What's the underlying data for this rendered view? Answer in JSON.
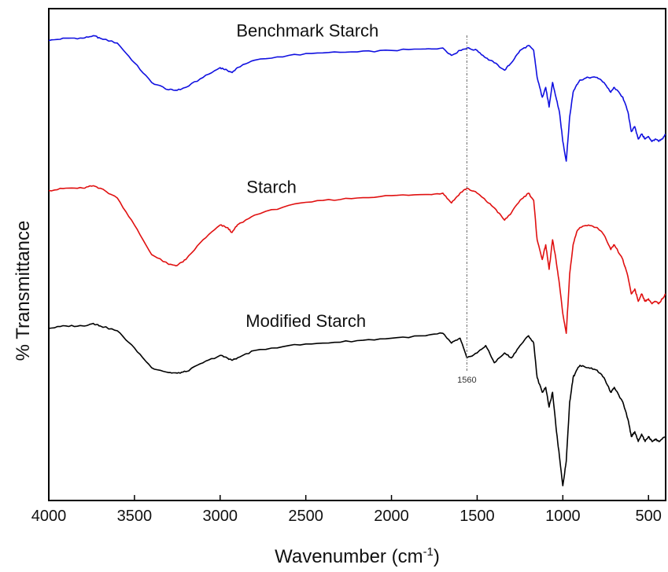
{
  "chart_data": {
    "type": "line",
    "xlabel": "Wavenumber (cm",
    "xlabel_sup": "-1",
    "xlabel_close": ")",
    "ylabel": "% Transmittance",
    "xlim": [
      4000,
      400
    ],
    "x_reversed": true,
    "ylim": [
      0,
      1
    ],
    "y_ticks_shown": false,
    "x_ticks": [
      4000,
      3500,
      3000,
      2500,
      2000,
      1500,
      1000,
      500
    ],
    "x_tick_labels": [
      "4000",
      "3500",
      "3000",
      "2500",
      "2000",
      "1500",
      "1000",
      "500"
    ],
    "grid": false,
    "legend": "none",
    "annotations": [
      {
        "type": "vline",
        "x": 1560,
        "label": "1560",
        "style": "dashed"
      }
    ],
    "series": [
      {
        "name": "Benchmark Starch",
        "color": "#1010e0",
        "x": [
          4000,
          3900,
          3800,
          3740,
          3700,
          3600,
          3500,
          3400,
          3300,
          3250,
          3200,
          3100,
          3000,
          2960,
          2930,
          2900,
          2800,
          2600,
          2400,
          2200,
          2000,
          1800,
          1700,
          1650,
          1600,
          1560,
          1500,
          1450,
          1400,
          1340,
          1300,
          1250,
          1200,
          1170,
          1150,
          1120,
          1100,
          1080,
          1060,
          1040,
          1020,
          1000,
          980,
          960,
          940,
          920,
          900,
          850,
          800,
          760,
          720,
          700,
          650,
          620,
          600,
          580,
          560,
          540,
          520,
          500,
          480,
          460,
          440,
          420,
          400
        ],
        "y": [
          0.935,
          0.94,
          0.94,
          0.945,
          0.94,
          0.93,
          0.89,
          0.85,
          0.835,
          0.834,
          0.84,
          0.86,
          0.88,
          0.875,
          0.87,
          0.88,
          0.895,
          0.905,
          0.91,
          0.912,
          0.915,
          0.918,
          0.92,
          0.905,
          0.915,
          0.92,
          0.915,
          0.9,
          0.89,
          0.875,
          0.89,
          0.915,
          0.925,
          0.915,
          0.86,
          0.82,
          0.84,
          0.8,
          0.85,
          0.82,
          0.79,
          0.73,
          0.69,
          0.78,
          0.83,
          0.845,
          0.855,
          0.86,
          0.86,
          0.85,
          0.83,
          0.84,
          0.82,
          0.79,
          0.75,
          0.76,
          0.735,
          0.745,
          0.735,
          0.74,
          0.73,
          0.735,
          0.73,
          0.735,
          0.745
        ]
      },
      {
        "name": "Starch",
        "color": "#e01010",
        "x": [
          4000,
          3900,
          3800,
          3740,
          3700,
          3600,
          3500,
          3400,
          3300,
          3250,
          3200,
          3100,
          3000,
          2960,
          2930,
          2900,
          2800,
          2600,
          2400,
          2200,
          2000,
          1800,
          1700,
          1650,
          1600,
          1560,
          1500,
          1450,
          1400,
          1340,
          1300,
          1250,
          1200,
          1170,
          1150,
          1120,
          1100,
          1080,
          1060,
          1040,
          1020,
          1000,
          980,
          960,
          940,
          920,
          900,
          850,
          800,
          760,
          720,
          700,
          650,
          620,
          600,
          580,
          560,
          540,
          520,
          500,
          480,
          460,
          440,
          420,
          400
        ],
        "y": [
          0.63,
          0.635,
          0.635,
          0.64,
          0.635,
          0.615,
          0.56,
          0.5,
          0.48,
          0.478,
          0.49,
          0.53,
          0.56,
          0.555,
          0.545,
          0.56,
          0.58,
          0.6,
          0.61,
          0.615,
          0.62,
          0.622,
          0.625,
          0.605,
          0.625,
          0.635,
          0.625,
          0.61,
          0.595,
          0.57,
          0.585,
          0.61,
          0.625,
          0.61,
          0.53,
          0.49,
          0.52,
          0.47,
          0.53,
          0.49,
          0.44,
          0.38,
          0.34,
          0.46,
          0.52,
          0.545,
          0.555,
          0.56,
          0.555,
          0.54,
          0.51,
          0.52,
          0.49,
          0.455,
          0.42,
          0.43,
          0.405,
          0.42,
          0.405,
          0.41,
          0.4,
          0.405,
          0.4,
          0.41,
          0.42
        ]
      },
      {
        "name": "Modified Starch",
        "color": "#000000",
        "x": [
          4000,
          3900,
          3800,
          3740,
          3700,
          3600,
          3500,
          3400,
          3300,
          3250,
          3200,
          3100,
          3000,
          2960,
          2930,
          2900,
          2800,
          2600,
          2400,
          2200,
          2000,
          1800,
          1700,
          1650,
          1600,
          1560,
          1500,
          1450,
          1400,
          1340,
          1300,
          1250,
          1200,
          1170,
          1150,
          1120,
          1100,
          1080,
          1060,
          1040,
          1020,
          1000,
          980,
          960,
          940,
          920,
          900,
          850,
          800,
          760,
          720,
          700,
          650,
          620,
          600,
          580,
          560,
          540,
          520,
          500,
          480,
          460,
          440,
          420,
          400
        ],
        "y": [
          0.35,
          0.355,
          0.355,
          0.36,
          0.355,
          0.345,
          0.31,
          0.27,
          0.26,
          0.259,
          0.262,
          0.28,
          0.295,
          0.29,
          0.285,
          0.29,
          0.305,
          0.315,
          0.32,
          0.325,
          0.33,
          0.335,
          0.34,
          0.32,
          0.33,
          0.29,
          0.3,
          0.315,
          0.28,
          0.3,
          0.29,
          0.315,
          0.335,
          0.32,
          0.25,
          0.22,
          0.23,
          0.19,
          0.22,
          0.15,
          0.09,
          0.03,
          0.08,
          0.2,
          0.25,
          0.265,
          0.275,
          0.27,
          0.265,
          0.25,
          0.22,
          0.23,
          0.2,
          0.165,
          0.13,
          0.14,
          0.12,
          0.135,
          0.12,
          0.13,
          0.12,
          0.125,
          0.12,
          0.125,
          0.13
        ]
      }
    ]
  }
}
